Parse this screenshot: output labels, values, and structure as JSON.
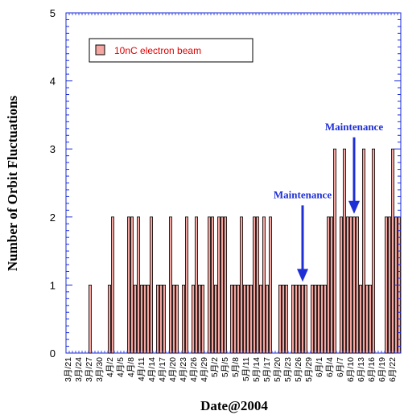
{
  "chart_data": {
    "type": "bar",
    "xlabel": "Date@2004",
    "ylabel": "Number of Orbit Fluctuations",
    "ylim": [
      0,
      5
    ],
    "yticks": [
      "0",
      "1",
      "2",
      "3",
      "4",
      "5"
    ],
    "grid": false,
    "legend_position": "top-left",
    "colors": {
      "bar_fill": "#f4a6a0",
      "bar_stroke": "#000000",
      "axis": "#1a2bd6",
      "annotation": "#1f2fd6",
      "legend_text": "#e00000"
    },
    "x_tick_labels": [
      "3月/21",
      "3月/24",
      "3月/27",
      "3月/30",
      "4月/2",
      "4月/5",
      "4月/8",
      "4月/11",
      "4月/14",
      "4月/17",
      "4月/20",
      "4月/23",
      "4月/26",
      "4月/29",
      "5月/2",
      "5月/5",
      "5月/8",
      "5月/11",
      "5月/14",
      "5月/17",
      "5月/20",
      "5月/23",
      "5月/26",
      "5月/29",
      "6月/1",
      "6月/4",
      "6月/7",
      "6月/10",
      "6月/13",
      "6月/16",
      "6月/19",
      "6月/22"
    ],
    "series": [
      {
        "name": "10nC electron beam",
        "values": [
          0,
          0,
          0,
          0,
          0,
          0,
          0,
          1,
          0,
          0,
          0,
          0,
          0,
          1,
          2,
          0,
          0,
          0,
          0,
          2,
          2,
          1,
          2,
          1,
          1,
          1,
          2,
          0,
          1,
          1,
          1,
          0,
          2,
          1,
          1,
          0,
          1,
          2,
          0,
          1,
          2,
          1,
          1,
          0,
          2,
          2,
          1,
          2,
          2,
          2,
          0,
          1,
          1,
          1,
          2,
          1,
          1,
          1,
          2,
          2,
          1,
          2,
          1,
          2,
          0,
          0,
          1,
          1,
          1,
          0,
          1,
          1,
          1,
          1,
          1,
          0,
          1,
          1,
          1,
          1,
          1,
          2,
          2,
          3,
          0,
          2,
          3,
          2,
          2,
          2,
          2,
          1,
          3,
          1,
          1,
          3,
          0,
          0,
          0,
          2,
          2,
          3,
          2,
          2
        ]
      }
    ],
    "annotations": [
      {
        "text": "Maintenance",
        "target_index": 73
      },
      {
        "text": "Maintenance",
        "target_index": 89
      }
    ]
  }
}
